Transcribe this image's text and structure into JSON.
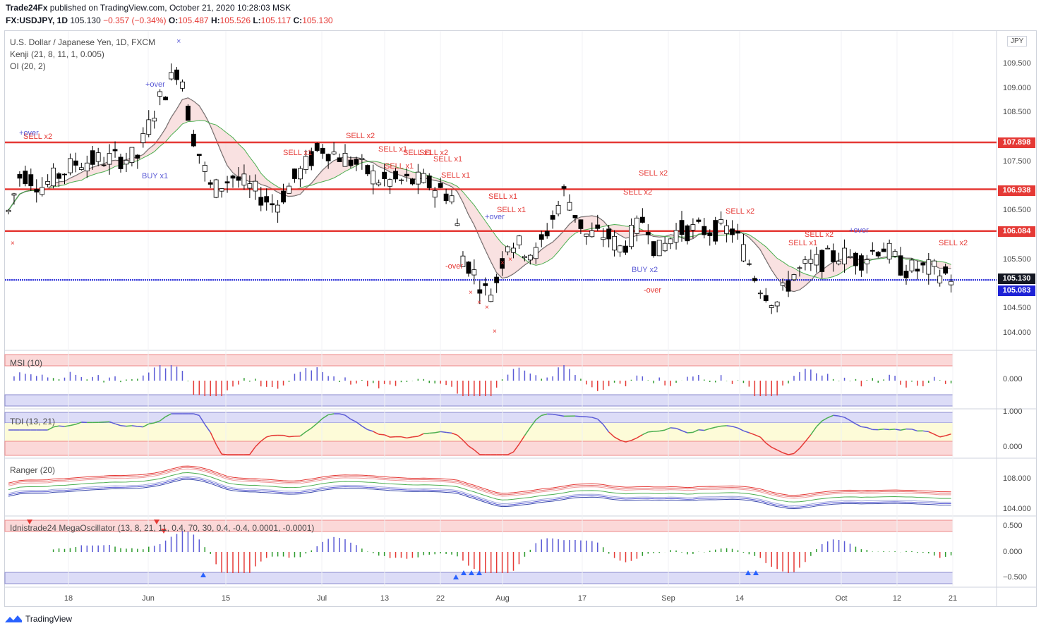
{
  "header": {
    "publisher": "Trade24Fx",
    "published_text": "published on TradingView.com, October 21, 2020 10:28:03 MSK",
    "symbol": "FX:USDJPY, 1D",
    "last": "105.130",
    "change": "−0.357 (−0.34%)",
    "o_label": "O:",
    "o": "105.487",
    "h_label": "H:",
    "h": "105.526",
    "l_label": "L:",
    "l": "105.117",
    "c_label": "C:",
    "c": "105.130"
  },
  "main_pane": {
    "title": "U.S. Dollar / Japanese Yen, 1D, FXCM",
    "indicator1": "Kenji (21, 8, 11, 1, 0.005)",
    "indicator2": "OI (20, 2)",
    "currency_badge": "JPY",
    "y_ticks": [
      "109.500",
      "109.000",
      "108.500",
      "107.500",
      "106.500",
      "105.500",
      "104.500",
      "104.000"
    ],
    "price_tags": [
      {
        "value": "107.898",
        "color": "#e53935"
      },
      {
        "value": "106.938",
        "color": "#e53935"
      },
      {
        "value": "106.084",
        "color": "#e53935"
      },
      {
        "value": "105.130",
        "color": "#131722"
      },
      {
        "value": "105.083",
        "color": "#1e22d6"
      }
    ],
    "signals": [
      {
        "text": "SELL x2",
        "kind": "sell"
      },
      {
        "text": "+over",
        "kind": "buy"
      },
      {
        "text": "+over",
        "kind": "buy"
      },
      {
        "text": "BUY x1",
        "kind": "buy"
      },
      {
        "text": "SELL x1",
        "kind": "sell"
      },
      {
        "text": "SELL x2",
        "kind": "sell"
      },
      {
        "text": "SELL x1",
        "kind": "sell"
      },
      {
        "text": "SELL x1",
        "kind": "sell"
      },
      {
        "text": "SELL x2",
        "kind": "sell"
      },
      {
        "text": "SELL x1",
        "kind": "sell"
      },
      {
        "text": "SELL x1",
        "kind": "sell"
      },
      {
        "text": "SELL x1",
        "kind": "sell"
      },
      {
        "text": "+over",
        "kind": "buy"
      },
      {
        "text": "SELL x1",
        "kind": "sell"
      },
      {
        "text": "-over",
        "kind": "sell"
      },
      {
        "text": "SELL x1",
        "kind": "sell"
      },
      {
        "text": "SELL x2",
        "kind": "sell"
      },
      {
        "text": "SELL x2",
        "kind": "sell"
      },
      {
        "text": "BUY x2",
        "kind": "buy"
      },
      {
        "text": "-over",
        "kind": "sell"
      },
      {
        "text": "SELL x2",
        "kind": "sell"
      },
      {
        "text": "SELL x1",
        "kind": "sell"
      },
      {
        "text": "SELL x2",
        "kind": "sell"
      },
      {
        "text": "+over",
        "kind": "buy"
      },
      {
        "text": "SELL x2",
        "kind": "sell"
      }
    ]
  },
  "panes": {
    "msi": {
      "label": "MSI (10)",
      "ticks": [
        "0.000"
      ]
    },
    "tdi": {
      "label": "TDI (13, 21)",
      "ticks": [
        "1.000",
        "0.000"
      ]
    },
    "ranger": {
      "label": "Ranger (20)",
      "ticks": [
        "108.000",
        "104.000"
      ]
    },
    "mega": {
      "label": "Idnistrade24 MegaOscillator (13, 8, 21, 11, 0.4, 70, 30, 0.4, -0.4, 0.0001, -0.0001)",
      "ticks": [
        "0.500",
        "0.000",
        "−0.500"
      ]
    }
  },
  "x_axis": [
    "18",
    "Jun",
    "15",
    "Jul",
    "13",
    "22",
    "Aug",
    "17",
    "Sep",
    "14",
    "Oct",
    "12",
    "21"
  ],
  "footer": {
    "brand": "TradingView"
  },
  "colors": {
    "bull": "#ffffff",
    "bear": "#000000",
    "level": "#e53935",
    "current": "#1e22d6",
    "msi_pos": "#5b5bd6",
    "msi_neg": "#e53935",
    "msi_neutral": "#2e9b2e"
  }
}
